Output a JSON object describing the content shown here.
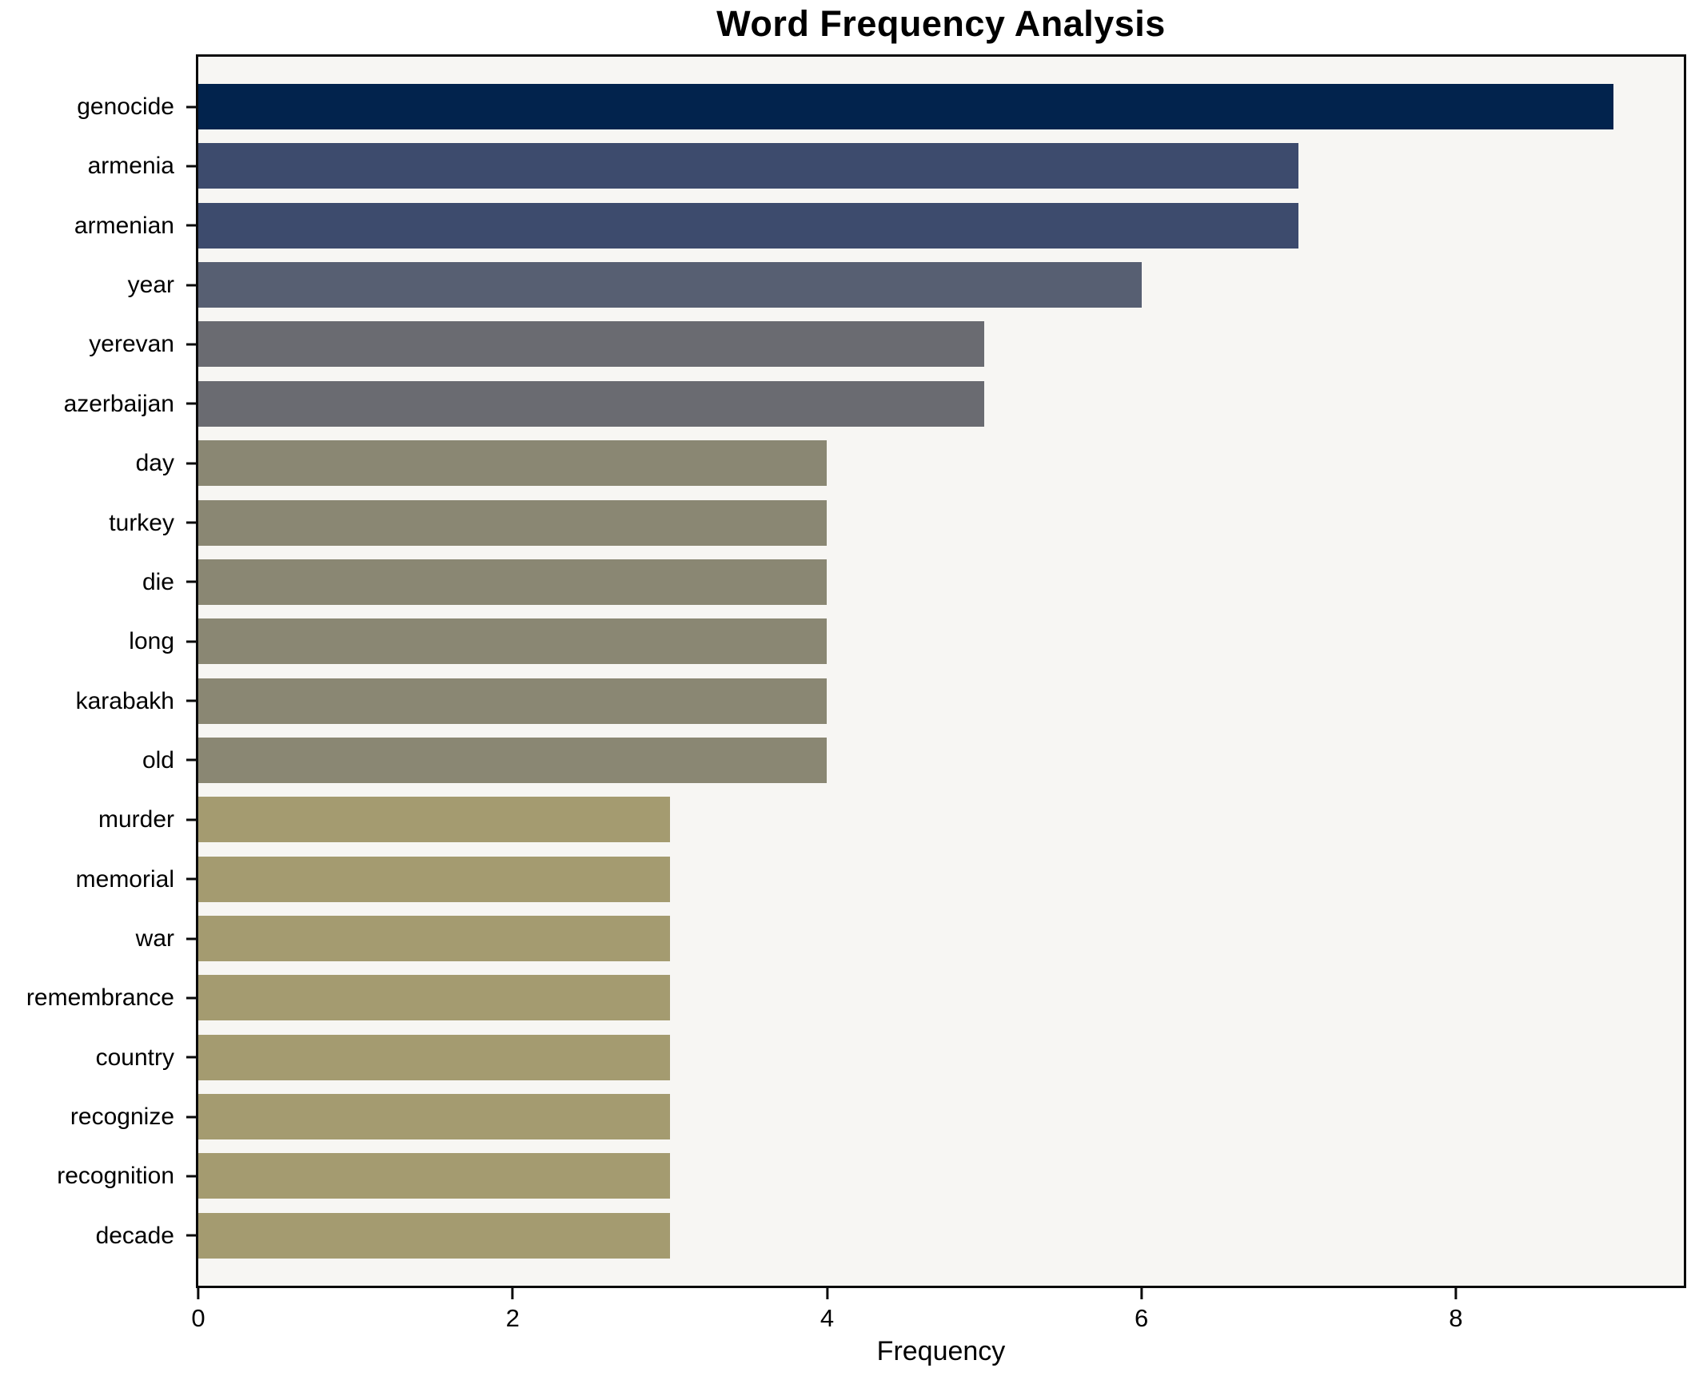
{
  "chart_data": {
    "type": "bar",
    "orientation": "horizontal",
    "title": "Word Frequency Analysis",
    "xlabel": "Frequency",
    "ylabel": "",
    "categories": [
      "genocide",
      "armenia",
      "armenian",
      "year",
      "yerevan",
      "azerbaijan",
      "day",
      "turkey",
      "die",
      "long",
      "karabakh",
      "old",
      "murder",
      "memorial",
      "war",
      "remembrance",
      "country",
      "recognize",
      "recognition",
      "decade"
    ],
    "values": [
      9,
      7,
      7,
      6,
      5,
      5,
      4,
      4,
      4,
      4,
      4,
      4,
      3,
      3,
      3,
      3,
      3,
      3,
      3,
      3
    ],
    "bar_colors": [
      "#02234d",
      "#3d4b6d",
      "#3d4b6d",
      "#575f72",
      "#6a6b71",
      "#6a6b71",
      "#8a8773",
      "#8a8773",
      "#8a8773",
      "#8a8773",
      "#8a8773",
      "#8a8773",
      "#a49b70",
      "#a49b70",
      "#a49b70",
      "#a49b70",
      "#a49b70",
      "#a49b70",
      "#a49b70",
      "#a49b70"
    ],
    "xlim": [
      0,
      9.45
    ],
    "xticks": [
      0,
      2,
      4,
      6,
      8
    ],
    "grid": false,
    "legend_position": "none",
    "plot_background": "#f7f6f3",
    "figure_background": "#ffffff",
    "spine_color": "#0a0a0a"
  }
}
